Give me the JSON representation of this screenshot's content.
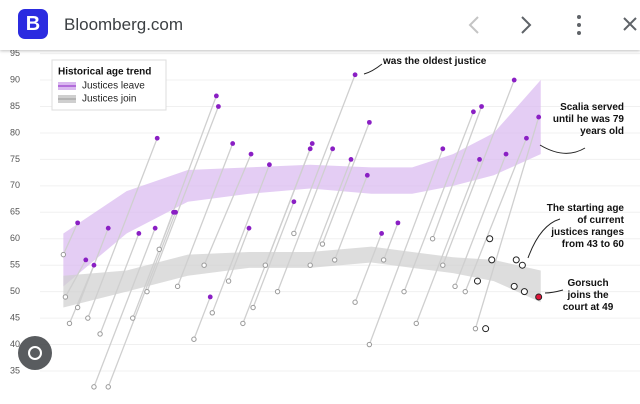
{
  "header": {
    "logo": "B",
    "site": "Bloomberg.com"
  },
  "chart_data": {
    "type": "scatter",
    "legend_title": "Historical age trend",
    "legend_position": "upper left",
    "grid": true,
    "xlim": [
      1780,
      2030
    ],
    "ylim": [
      35,
      95
    ],
    "yticks": [
      35,
      40,
      45,
      50,
      55,
      60,
      65,
      70,
      75,
      80,
      85,
      90,
      95
    ],
    "series": [
      {
        "name": "Justices leave",
        "color": "#8a1fc4",
        "band_color": "#d9b8ef",
        "x": [
          1796,
          1800,
          1804,
          1811,
          1835,
          1834,
          1826,
          1844,
          1843,
          1865,
          1864,
          1872,
          1861,
          1881,
          1890,
          1880,
          1911,
          1902,
          1910,
          1921,
          1932,
          1930,
          1939,
          1938,
          1945,
          1975,
          1953,
          1990,
          1993,
          1994,
          2010,
          2006,
          2016,
          2022
        ],
        "values": [
          63,
          56,
          55,
          62,
          79,
          62,
          61,
          65,
          65,
          85,
          87,
          78,
          49,
          76,
          74,
          62,
          78,
          67,
          77,
          77,
          91,
          75,
          82,
          72,
          61,
          77,
          63,
          84,
          75,
          85,
          90,
          76,
          79,
          83
        ],
        "trend": {
          "x": [
            1789,
            1820,
            1850,
            1880,
            1910,
            1940,
            1960,
            1980,
            2000,
            2023
          ],
          "low": [
            51,
            61,
            67,
            68.5,
            69.5,
            68.5,
            68.5,
            70,
            72,
            76
          ],
          "high": [
            61,
            69,
            73,
            73.5,
            74,
            73.5,
            73.5,
            76,
            80,
            90
          ]
        }
      },
      {
        "name": "Justices join",
        "color": "#999999",
        "band_color": "#cfcfcf",
        "x": [
          1789,
          1790,
          1792,
          1796,
          1801,
          1804,
          1807,
          1811,
          1823,
          1830,
          1836,
          1845,
          1853,
          1858,
          1862,
          1870,
          1877,
          1882,
          1888,
          1894,
          1902,
          1910,
          1916,
          1922,
          1932,
          1939,
          1946,
          1956,
          1962,
          1970,
          1975,
          1981,
          1986,
          1991
        ],
        "values": [
          57,
          49,
          44,
          47,
          45,
          32,
          42,
          32,
          45,
          50,
          58,
          51,
          41,
          55,
          46,
          52,
          44,
          47,
          55,
          50,
          61,
          55,
          59,
          56,
          48,
          40,
          56,
          50,
          44,
          60,
          55,
          51,
          50,
          43
        ],
        "trend": {
          "x": [
            1789,
            1820,
            1850,
            1880,
            1910,
            1940,
            1960,
            1980,
            2000,
            2023
          ],
          "low": [
            47,
            50,
            53,
            54.5,
            54.5,
            55.5,
            54.5,
            53.5,
            52,
            48
          ],
          "high": [
            53,
            54,
            57,
            57.5,
            57.5,
            58.5,
            57.5,
            56.5,
            56,
            54
          ]
        }
      }
    ],
    "current": {
      "x": [
        1998,
        1999,
        2011,
        2014,
        1992,
        2010,
        2015,
        1996,
        2022
      ],
      "values": [
        60,
        56,
        56,
        55,
        52,
        51,
        50,
        43,
        49
      ],
      "highlight": 8,
      "highlight_color": "#e0163a"
    },
    "annotations": [
      {
        "text": "was the oldest justice",
        "x": 1902,
        "y": 91
      },
      {
        "text": "Scalia served until he was 79 years old",
        "x": 2016,
        "y": 79
      },
      {
        "text": "The starting age of current justices ranges from 43 to 60",
        "x": 2014,
        "y": 60
      },
      {
        "text": "Gorsuch joins the court at 49",
        "x": 2022,
        "y": 49
      }
    ]
  }
}
